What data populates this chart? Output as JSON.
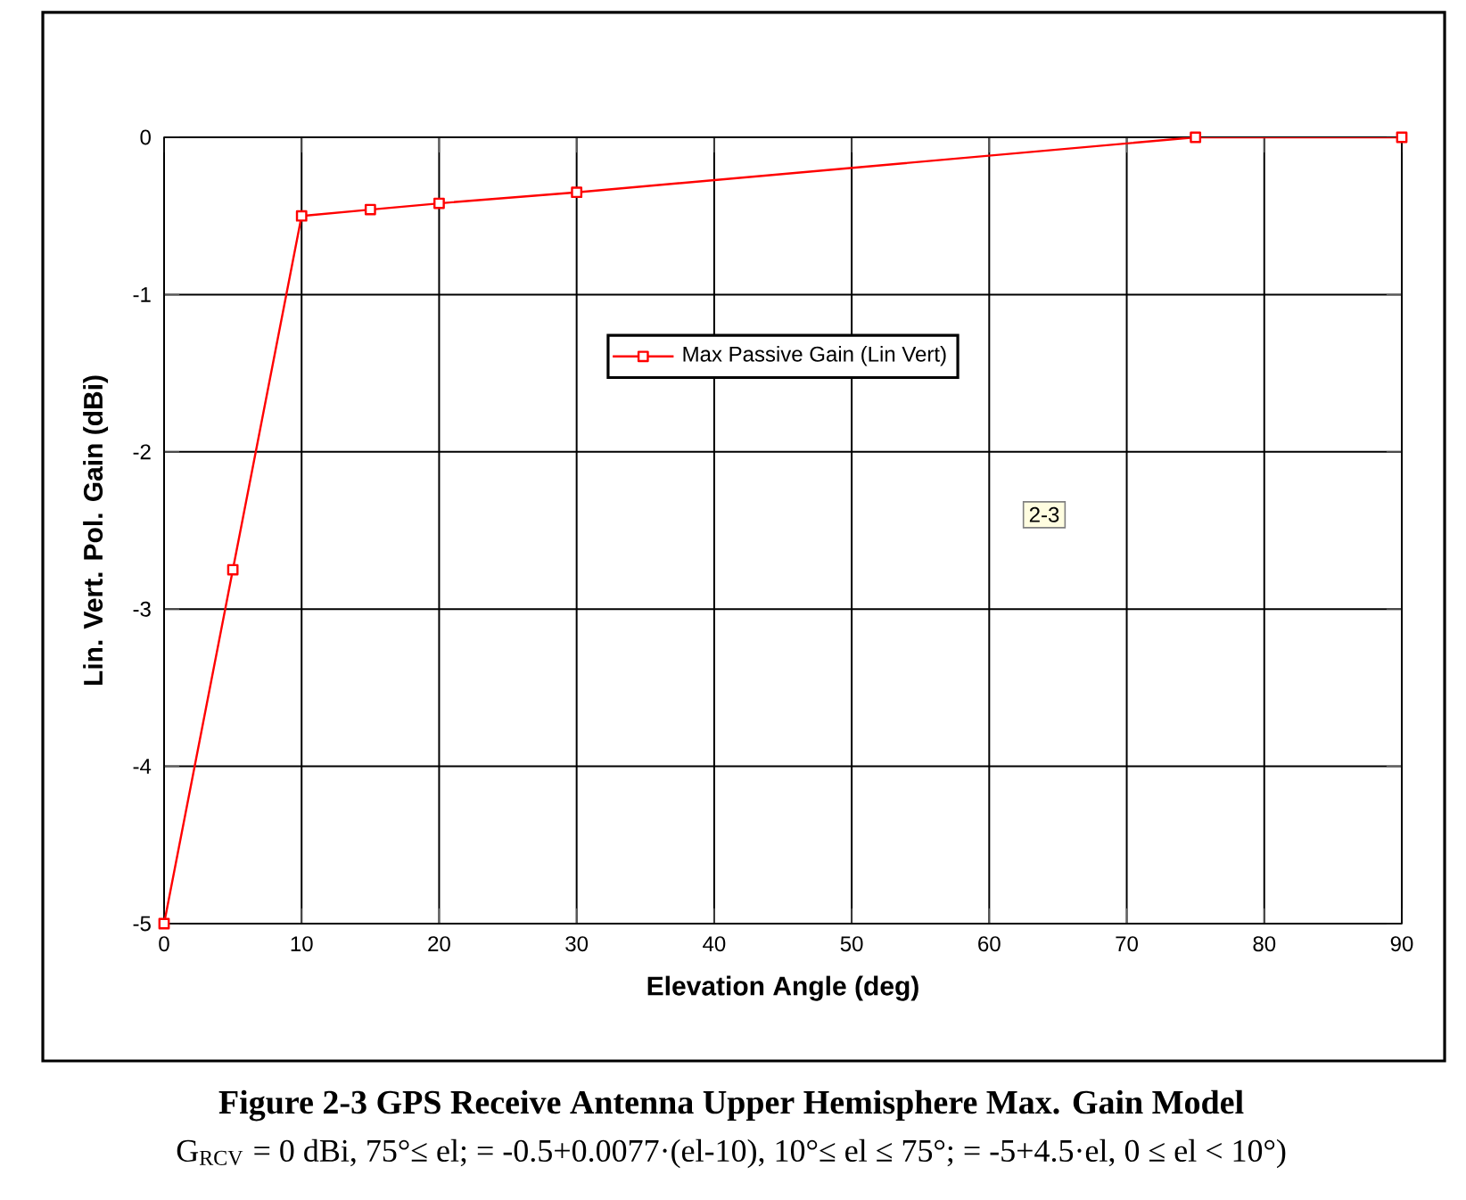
{
  "chart_data": {
    "type": "line",
    "title": "**Figure 2-3 GPS Receive Antenna Upper Hemisphere Max. Gain Model**",
    "xlabel": "Elevation Angle (deg)",
    "ylabel": "Lin. Vert. Pol. Gain (dBi)",
    "x": [
      0,
      5,
      10,
      15,
      20,
      30,
      75,
      90
    ],
    "series": [
      {
        "name": "Max Passive Gain (Lin Vert)",
        "color": "#ff0000",
        "values": [
          -5,
          -2.75,
          -0.5,
          -0.46,
          -0.42,
          -0.35,
          0,
          0
        ]
      }
    ],
    "xlim": [
      0,
      90
    ],
    "xticks": [
      0,
      10,
      20,
      30,
      40,
      50,
      60,
      70,
      80,
      90
    ],
    "ylim": [
      -5,
      0
    ],
    "yticks": [
      -5,
      -4,
      -3,
      -2,
      -1,
      0
    ],
    "grid": true,
    "legend": "top",
    "marker": "square",
    "line_style": "solid",
    "annotations": [
      "2-3",
      "G$_{RCV}$ = 0 dBi, 75°≤ el;  = -0.5+0.0077·(el-10), 10°≤ el ≤ 75°; = -5+4.5·el, 0 ≤ el < 10°)"
    ]
  }
}
